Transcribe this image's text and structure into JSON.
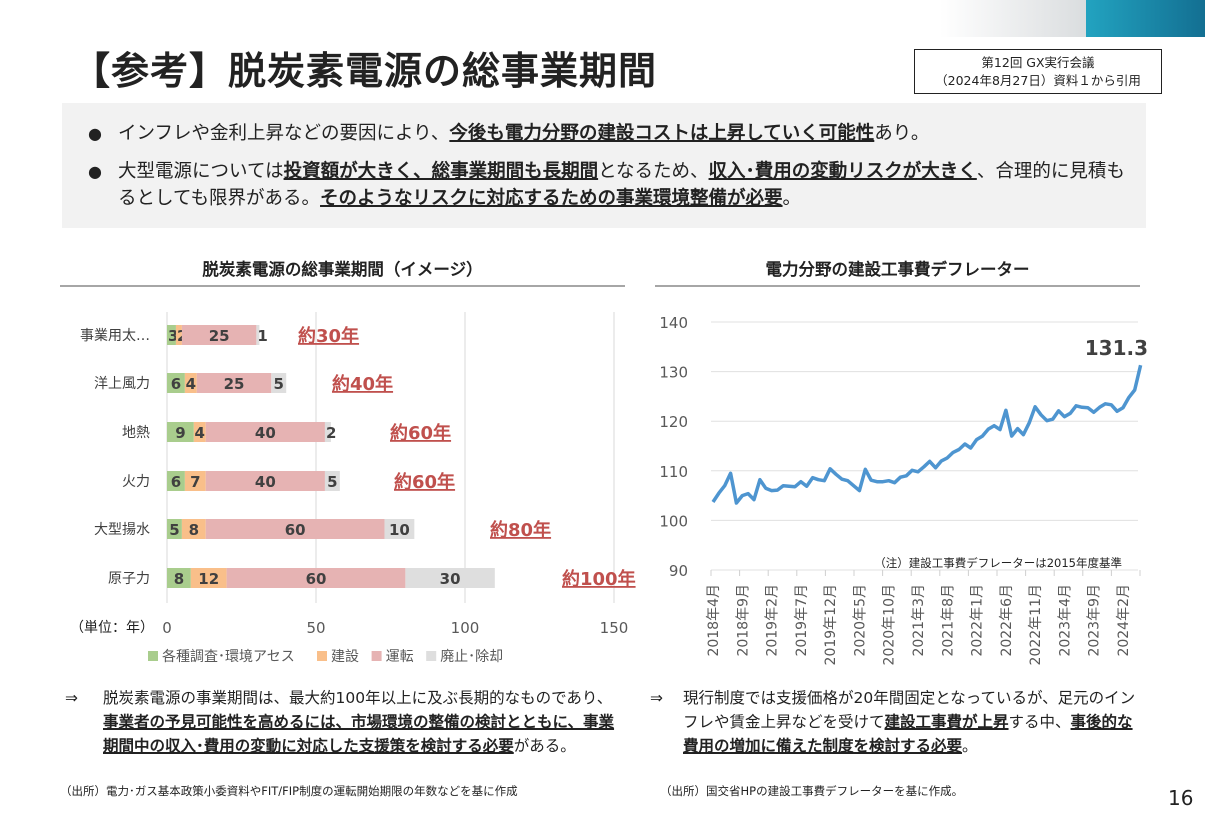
{
  "header": {
    "title": "【参考】脱炭素電源の総事業期間",
    "source_line1": "第12回 GX実行会議",
    "source_line2": "（2024年8月27日）資料１から引用"
  },
  "summary": {
    "bullet_symbol": "●",
    "bullets": [
      [
        {
          "t": "インフレや金利上昇などの要因により、"
        },
        {
          "t": "今後も電力分野の建設コストは上昇していく可能性",
          "b": true
        },
        {
          "t": "あり。"
        }
      ],
      [
        {
          "t": "大型電源については"
        },
        {
          "t": "投資額が大きく、総事業期間も長期間",
          "b": true
        },
        {
          "t": "となるため、"
        },
        {
          "t": "収入･費用の変動リスクが大きく",
          "b": true
        },
        {
          "t": "、合理的に見積もるとしても限界がある。"
        },
        {
          "t": "そのようなリスクに対応するための事業環境整備が必要",
          "b": true
        },
        {
          "t": "。"
        }
      ]
    ]
  },
  "left": {
    "title": "脱炭素電源の総事業期間（イメージ）",
    "unit_label": "（単位：年）",
    "note_arrow": "⇒",
    "note": [
      {
        "t": "脱炭素電源の事業期間は、最大約100年以上に及ぶ長期的なものであり、"
      },
      {
        "t": "事業者の予見可能性を高めるには、市場環境の整備の検討とともに、事業期間中の収入･費用の変動に対応した支援策を検討する必要",
        "b": true
      },
      {
        "t": "がある。"
      }
    ],
    "source": "（出所）電力･ガス基本政策小委資料やFIT/FIP制度の運転開始期限の年数などを基に作成"
  },
  "right": {
    "title": "電力分野の建設工事費デフレーター",
    "footnote": "（注）建設工事費デフレーターは2015年度基準",
    "note_arrow": "⇒",
    "note": [
      {
        "t": "現行制度では支援価格が20年間固定となっているが、足元のインフレや賃金上昇などを受けて"
      },
      {
        "t": "建設工事費が上昇",
        "b": true
      },
      {
        "t": "する中、"
      },
      {
        "t": "事後的な費用の増加に備えた制度を検討する必要",
        "b": true
      },
      {
        "t": "。"
      }
    ],
    "source": "（出所）国交省HPの建設工事費デフレーターを基に作成。"
  },
  "page_number": "16",
  "chart_data": [
    {
      "type": "bar",
      "stacked": true,
      "orientation": "horizontal",
      "categories": [
        "事業用太…",
        "洋上風力",
        "地熱",
        "火力",
        "大型揚水",
        "原子力"
      ],
      "series": [
        {
          "name": "各種調査･環境アセス",
          "color": "#a9cd8d",
          "values": [
            3,
            6,
            9,
            6,
            5,
            8
          ]
        },
        {
          "name": "建設",
          "color": "#f9bf8a",
          "values": [
            2,
            4,
            4,
            7,
            8,
            12
          ]
        },
        {
          "name": "運転",
          "color": "#e6b3b3",
          "values": [
            25,
            25,
            40,
            40,
            60,
            60
          ]
        },
        {
          "name": "廃止･除却",
          "color": "#dedede",
          "values": [
            1,
            5,
            2,
            5,
            10,
            30
          ]
        }
      ],
      "totals_labels": [
        "約30年",
        "約40年",
        "約60年",
        "約60年",
        "約80年",
        "約100年"
      ],
      "xlim": [
        0,
        150
      ],
      "xticks": [
        0,
        50,
        100,
        150
      ],
      "legend": "bottom",
      "grid": true,
      "total_label_color": "#c0504d"
    },
    {
      "type": "line",
      "ylim": [
        90,
        140
      ],
      "yticks": [
        90,
        100,
        110,
        120,
        130,
        140
      ],
      "color": "#4e95d0",
      "xtick_labels": [
        "2018年4月",
        "2018年9月",
        "2019年2月",
        "2019年7月",
        "2019年12月",
        "2020年5月",
        "2020年10月",
        "2021年3月",
        "2021年8月",
        "2022年1月",
        "2022年6月",
        "2022年11月",
        "2023年4月",
        "2023年9月",
        "2024年2月"
      ],
      "xtick_every": 5,
      "values": [
        103.7,
        105.5,
        107,
        109.5,
        103.5,
        105,
        105.4,
        104.2,
        108.2,
        106.5,
        106,
        106.1,
        107,
        106.9,
        106.8,
        107.8,
        106.9,
        108.6,
        108.2,
        108,
        110.4,
        109.3,
        108.3,
        108,
        107,
        106,
        110.3,
        108.1,
        107.8,
        107.8,
        108,
        107.6,
        108.7,
        109,
        110.1,
        109.8,
        110.8,
        111.9,
        110.6,
        112,
        112.6,
        113.7,
        114.3,
        115.4,
        114.6,
        116.3,
        117,
        118.4,
        119.1,
        118.3,
        122.2,
        117,
        118.5,
        117.3,
        119.7,
        122.9,
        121.3,
        120.1,
        120.4,
        122.1,
        120.9,
        121.6,
        123.1,
        122.8,
        122.7,
        121.8,
        122.8,
        123.5,
        123.3,
        122,
        122.7,
        124.8,
        126.3,
        131.3
      ],
      "last_label": "131.3",
      "grid": true
    }
  ]
}
